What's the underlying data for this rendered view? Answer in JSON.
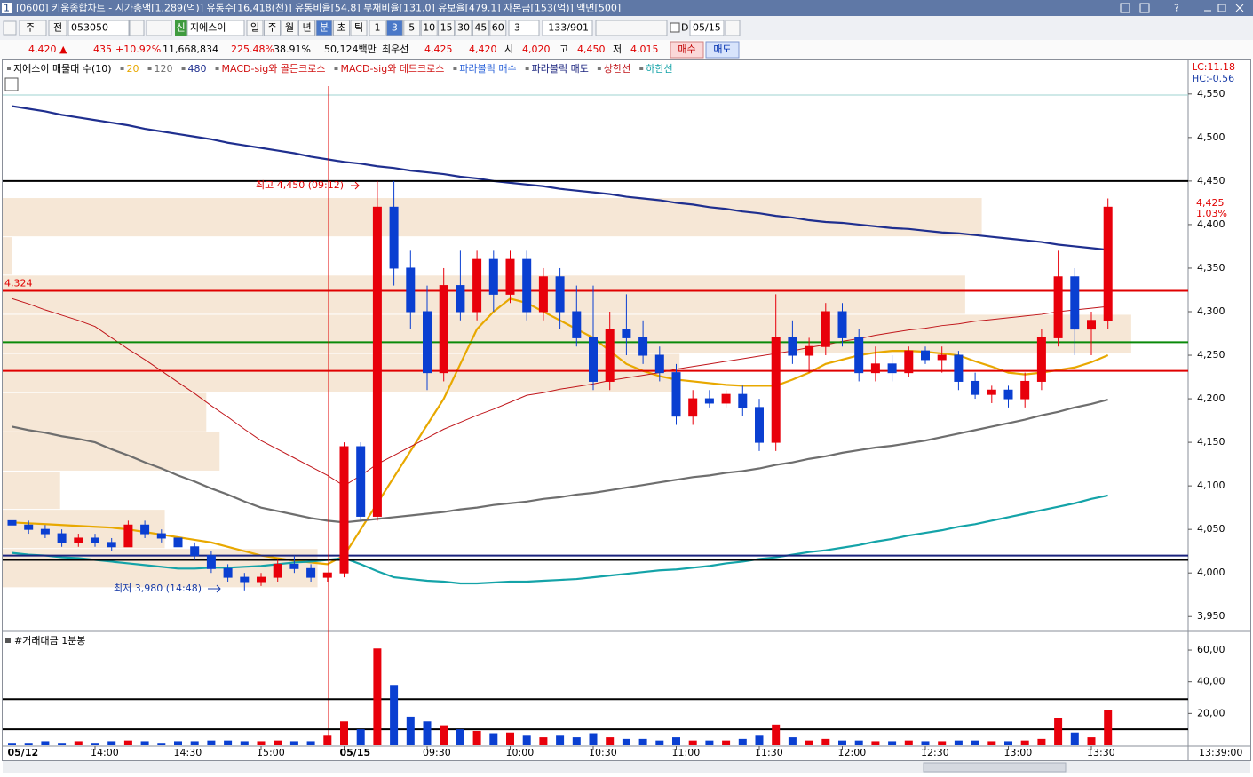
{
  "ui": {
    "title_bar": {
      "number": "1",
      "text": "[0600] 키움종합차트 - 시가총액[1,289(억)] 유통수[16,418(천)] 유통비율[54.8] 부채비율[131.0] 유보율[479.1] 자본금[153(억)] 액면[500]"
    },
    "toolbar": {
      "market": "주",
      "range": "전",
      "code": "053050",
      "badge": "신",
      "name": "지에스이",
      "periods": [
        "일",
        "주",
        "월",
        "년",
        "분",
        "초",
        "틱"
      ],
      "minutes": [
        "1",
        "3",
        "5",
        "10",
        "15",
        "30",
        "45",
        "60"
      ],
      "count": "3",
      "pages": "133/901",
      "date_flag": "D",
      "date": "05/15"
    },
    "quote": {
      "price": "4,420 ▲",
      "change": "435",
      "rate": "+10.92%",
      "volume": "11,668,834",
      "vol_rate": "225.48%",
      "turnover": "38.91%",
      "amount": "50,124백만",
      "best_label": "최우선",
      "ask": "4,425",
      "bid": "4,420",
      "open_label": "시",
      "open": "4,020",
      "high_label": "고",
      "high": "4,450",
      "low_label": "저",
      "low": "4,015",
      "buy": "매수",
      "sell": "매도"
    },
    "time": "13:39:00"
  },
  "chart_data": [
    {
      "type": "candlestick",
      "open": [
        4060,
        4055,
        4050,
        4045,
        4035,
        4040,
        4035,
        4030,
        4055,
        4045,
        4040,
        4030,
        4020,
        4005,
        3995,
        3990,
        3995,
        4010,
        4005,
        3995,
        4000,
        4145,
        4065,
        4420,
        4350,
        4300,
        4230,
        4330,
        4300,
        4360,
        4320,
        4360,
        4300,
        4340,
        4300,
        4270,
        4220,
        4280,
        4270,
        4250,
        4230,
        4180,
        4200,
        4195,
        4205,
        4190,
        4150,
        4270,
        4250,
        4260,
        4300,
        4270,
        4230,
        4240,
        4230,
        4255,
        4245,
        4250,
        4220,
        4205,
        4210,
        4200,
        4220,
        4270,
        4340,
        4280,
        4290
      ],
      "high": [
        4065,
        4060,
        4055,
        4050,
        4045,
        4045,
        4040,
        4060,
        4060,
        4050,
        4045,
        4035,
        4025,
        4010,
        4000,
        4000,
        4015,
        4020,
        4010,
        4000,
        4150,
        4150,
        4450,
        4450,
        4370,
        4330,
        4350,
        4370,
        4370,
        4370,
        4370,
        4370,
        4350,
        4350,
        4330,
        4330,
        4300,
        4320,
        4290,
        4260,
        4240,
        4210,
        4210,
        4210,
        4215,
        4200,
        4320,
        4290,
        4270,
        4310,
        4310,
        4280,
        4260,
        4250,
        4260,
        4260,
        4260,
        4255,
        4230,
        4215,
        4215,
        4230,
        4280,
        4370,
        4350,
        4300,
        4430
      ],
      "low": [
        4050,
        4045,
        4040,
        4030,
        4030,
        4030,
        4025,
        4030,
        4040,
        4035,
        4025,
        4015,
        4000,
        3990,
        3980,
        3985,
        3990,
        4000,
        3990,
        3990,
        3995,
        4060,
        4060,
        4330,
        4280,
        4210,
        4220,
        4290,
        4290,
        4300,
        4310,
        4290,
        4290,
        4280,
        4260,
        4210,
        4210,
        4250,
        4240,
        4220,
        4170,
        4170,
        4190,
        4190,
        4180,
        4140,
        4140,
        4240,
        4230,
        4250,
        4260,
        4220,
        4220,
        4220,
        4225,
        4240,
        4230,
        4210,
        4200,
        4195,
        4190,
        4190,
        4210,
        4260,
        4250,
        4250,
        4280
      ],
      "close": [
        4055,
        4050,
        4045,
        4035,
        4040,
        4035,
        4030,
        4055,
        4045,
        4040,
        4030,
        4020,
        4005,
        3995,
        3990,
        3995,
        4010,
        4005,
        3995,
        4000,
        4145,
        4065,
        4420,
        4350,
        4300,
        4230,
        4330,
        4300,
        4360,
        4320,
        4360,
        4300,
        4340,
        4300,
        4270,
        4220,
        4280,
        4270,
        4250,
        4230,
        4180,
        4200,
        4195,
        4205,
        4190,
        4150,
        4270,
        4250,
        4260,
        4300,
        4270,
        4230,
        4240,
        4230,
        4255,
        4245,
        4250,
        4220,
        4205,
        4210,
        4200,
        4220,
        4270,
        4340,
        4280,
        4290,
        4420
      ],
      "up_color": "#e8000b",
      "down_color": "#0a3fd1",
      "series": [
        {
          "name": "지에스이 매물대 수(10)",
          "color": "#f6e7d6",
          "bins": [
            3983,
            4028,
            4073,
            4117,
            4162,
            4207,
            4252,
            4297,
            4342,
            4386,
            4431
          ],
          "values": [
            18.4,
            9.2,
            2.9,
            12.5,
            11.7,
            40.2,
            67.4,
            57.4,
            0,
            58.4
          ]
        },
        {
          "name": "20",
          "color": "#e8a800",
          "values": [
            4058,
            4057,
            4056,
            4055,
            4054,
            4053,
            4052,
            4050,
            4047,
            4044,
            4041,
            4038,
            4035,
            4030,
            4025,
            4020,
            4017,
            4014,
            4012,
            4010,
            4020,
            4050,
            4080,
            4110,
            4140,
            4170,
            4200,
            4240,
            4280,
            4300,
            4315,
            4310,
            4300,
            4290,
            4280,
            4270,
            4255,
            4240,
            4232,
            4226,
            4222,
            4220,
            4218,
            4216,
            4215,
            4215,
            4215,
            4222,
            4230,
            4240,
            4245,
            4250,
            4253,
            4255,
            4255,
            4254,
            4252,
            4250,
            4243,
            4237,
            4230,
            4228,
            4230,
            4233,
            4236,
            4242,
            4250
          ]
        },
        {
          "name": "120",
          "color": "#6e6e6e",
          "values": [
            4168,
            4164,
            4161,
            4157,
            4154,
            4150,
            4142,
            4135,
            4127,
            4120,
            4112,
            4105,
            4097,
            4090,
            4082,
            4075,
            4071,
            4067,
            4063,
            4060,
            4058,
            4060,
            4062,
            4064,
            4066,
            4068,
            4070,
            4073,
            4075,
            4078,
            4080,
            4082,
            4085,
            4087,
            4090,
            4092,
            4095,
            4098,
            4101,
            4104,
            4107,
            4110,
            4112,
            4115,
            4117,
            4120,
            4124,
            4127,
            4131,
            4134,
            4138,
            4141,
            4144,
            4146,
            4149,
            4152,
            4156,
            4160,
            4164,
            4168,
            4172,
            4176,
            4181,
            4185,
            4190,
            4194,
            4199
          ]
        },
        {
          "name": "480",
          "color": "#1f2f8f",
          "values": [
            4536,
            4533,
            4530,
            4526,
            4523,
            4520,
            4517,
            4514,
            4510,
            4507,
            4504,
            4501,
            4498,
            4494,
            4491,
            4488,
            4485,
            4482,
            4478,
            4475,
            4472,
            4470,
            4467,
            4465,
            4462,
            4460,
            4458,
            4455,
            4453,
            4450,
            4448,
            4446,
            4444,
            4441,
            4439,
            4437,
            4435,
            4432,
            4430,
            4428,
            4425,
            4423,
            4420,
            4418,
            4415,
            4413,
            4410,
            4408,
            4405,
            4403,
            4402,
            4400,
            4398,
            4396,
            4395,
            4393,
            4391,
            4390,
            4388,
            4386,
            4384,
            4382,
            4380,
            4377,
            4375,
            4373,
            4371
          ]
        },
        {
          "name": "MACD-sig와 골든크로스",
          "color": "#d01010"
        },
        {
          "name": "MACD-sig와 데드크로스",
          "color": "#d01010"
        },
        {
          "name": "파라볼릭 매수",
          "color": "#2a62d8"
        },
        {
          "name": "파라볼릭 매도",
          "color": "#1a237e"
        },
        {
          "name": "상한선",
          "color": "#c0161b",
          "values": [
            4315,
            4309,
            4302,
            4296,
            4290,
            4283,
            4270,
            4257,
            4245,
            4232,
            4219,
            4206,
            4192,
            4179,
            4165,
            4152,
            4142,
            4132,
            4122,
            4112,
            4100,
            4112,
            4125,
            4135,
            4145,
            4155,
            4165,
            4173,
            4181,
            4188,
            4196,
            4204,
            4207,
            4211,
            4214,
            4217,
            4221,
            4224,
            4227,
            4230,
            4234,
            4237,
            4240,
            4243,
            4246,
            4249,
            4252,
            4255,
            4259,
            4262,
            4266,
            4269,
            4273,
            4276,
            4279,
            4281,
            4284,
            4286,
            4289,
            4291,
            4293,
            4295,
            4297,
            4300,
            4302,
            4304,
            4306
          ]
        },
        {
          "name": "하한선",
          "color": "#14a3a8",
          "values": [
            4023,
            4021,
            4020,
            4018,
            4017,
            4015,
            4013,
            4011,
            4009,
            4007,
            4005,
            4005,
            4006,
            4006,
            4007,
            4008,
            4010,
            4012,
            4013,
            4015,
            4017,
            4010,
            4002,
            3995,
            3993,
            3991,
            3990,
            3988,
            3988,
            3989,
            3990,
            3990,
            3991,
            3992,
            3993,
            3995,
            3997,
            3999,
            4001,
            4003,
            4004,
            4006,
            4008,
            4011,
            4013,
            4016,
            4018,
            4021,
            4024,
            4026,
            4029,
            4032,
            4036,
            4039,
            4043,
            4046,
            4049,
            4053,
            4056,
            4060,
            4064,
            4068,
            4072,
            4076,
            4080,
            4085,
            4089
          ]
        }
      ],
      "hlines": [
        {
          "value": 4450,
          "color": "#000000"
        },
        {
          "value": {
            "value": 4324,
            "label": "4,324"
          },
          "color": "#e00000"
        },
        {
          "value": 4265,
          "color": "#0a8a0a"
        },
        {
          "value": 4232,
          "color": "#e00000"
        },
        {
          "value": 4020,
          "color": "#1a237e"
        },
        {
          "value": 4015,
          "color": "#000000"
        }
      ],
      "annotations": [
        "최고 4,450 (09:12)",
        "최저 3,980 (14:48)",
        "4,425",
        "1.03%",
        "LC:11.18",
        "HC:-0.56"
      ],
      "ylim": [
        3938,
        4559
      ],
      "yticks": [
        {
          "value": 3950,
          "label": "3,950"
        },
        {
          "value": 4000,
          "label": "4,000"
        },
        {
          "value": 4050,
          "label": "4,050"
        },
        {
          "value": 4100,
          "label": "4,100"
        },
        {
          "value": 4150,
          "label": "4,150"
        },
        {
          "value": 4200,
          "label": "4,200"
        },
        {
          "value": 4250,
          "label": "4,250"
        },
        {
          "value": 4300,
          "label": "4,300"
        },
        {
          "value": 4350,
          "label": "4,350"
        },
        {
          "value": 4400,
          "label": "4,400"
        },
        {
          "value": 4450,
          "label": "4,450"
        },
        {
          "value": 4500,
          "label": "4,500"
        },
        {
          "value": 4550,
          "label": "4,550"
        }
      ]
    },
    {
      "type": "bar",
      "title": "#거래대금 1분봉",
      "categories": [
        "05/12",
        null,
        null,
        null,
        null,
        "14:00",
        null,
        null,
        null,
        null,
        "14:30",
        null,
        null,
        null,
        null,
        "15:00",
        null,
        null,
        null,
        null,
        "05/15",
        null,
        null,
        null,
        null,
        "09:30",
        null,
        null,
        null,
        null,
        "10:00",
        null,
        null,
        null,
        null,
        "10:30",
        null,
        null,
        null,
        null,
        "11:00",
        null,
        null,
        null,
        null,
        "11:30",
        null,
        null,
        null,
        null,
        "12:00",
        null,
        null,
        null,
        null,
        "12:30",
        null,
        null,
        null,
        null,
        "13:00",
        null,
        null,
        null,
        null,
        "13:30",
        null
      ],
      "values": [
        1,
        1,
        2,
        1,
        2,
        1,
        2,
        3,
        2,
        1,
        2,
        2,
        3,
        3,
        2,
        2,
        3,
        2,
        2,
        6,
        15,
        10,
        61,
        38,
        18,
        15,
        12,
        10,
        9,
        7,
        8,
        6,
        5,
        6,
        5,
        7,
        5,
        4,
        4,
        3,
        5,
        3,
        3,
        3,
        4,
        6,
        13,
        5,
        3,
        4,
        3,
        3,
        2,
        2,
        3,
        2,
        2,
        3,
        3,
        2,
        2,
        3,
        4,
        17,
        8,
        5,
        22
      ],
      "hlines": [
        29,
        10
      ],
      "ylim": [
        0,
        69
      ],
      "yticks": [
        {
          "value": 20,
          "label": "20,00"
        },
        {
          "value": 40,
          "label": "40,00"
        },
        {
          "value": 60,
          "label": "60,00"
        }
      ]
    }
  ]
}
